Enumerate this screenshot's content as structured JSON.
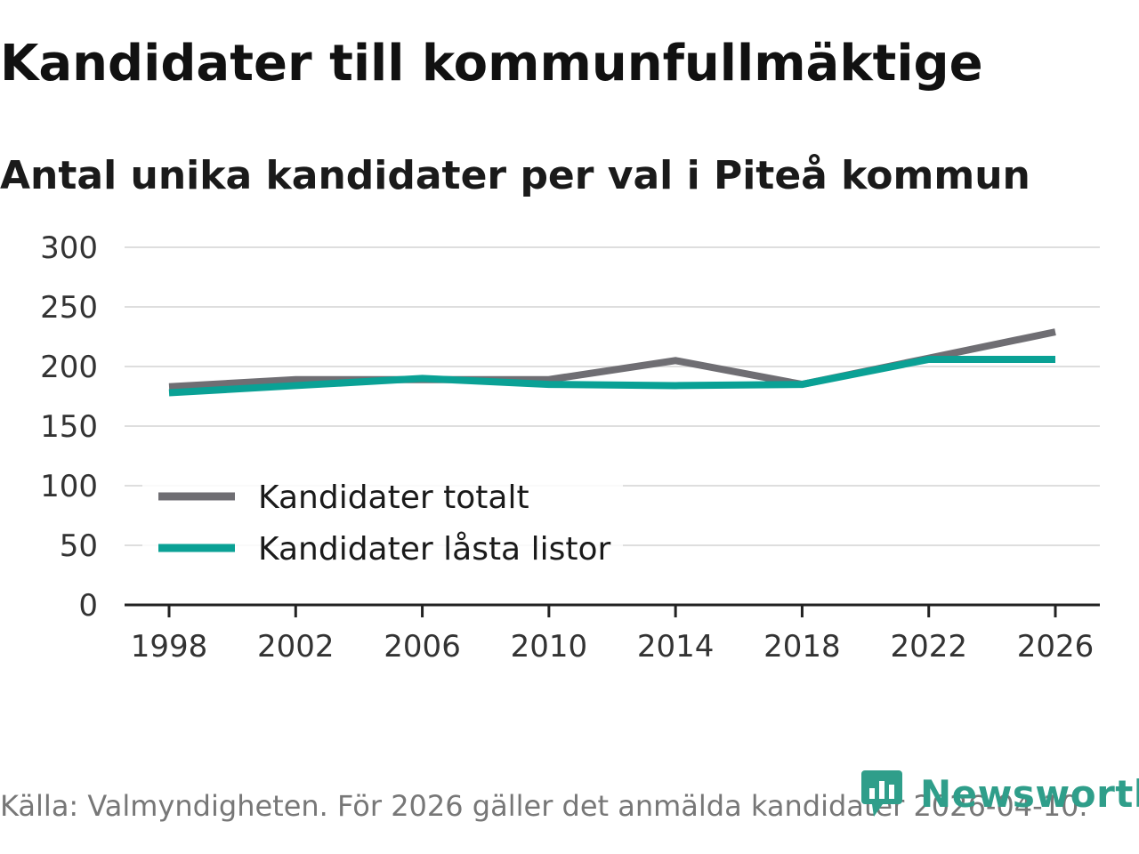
{
  "chart_data": {
    "type": "line",
    "title": "Kandidater till kommunfullmäktige",
    "subtitle": "Antal unika kandidater per val i Piteå kommun",
    "x": [
      1998,
      2002,
      2006,
      2010,
      2014,
      2018,
      2022,
      2026
    ],
    "xticks": [
      "1998",
      "2002",
      "2006",
      "2010",
      "2014",
      "2018",
      "2022",
      "2026"
    ],
    "yticks": [
      0,
      50,
      100,
      150,
      200,
      250,
      300
    ],
    "ylim": [
      0,
      300
    ],
    "xlabel": "",
    "ylabel": "",
    "grid": true,
    "legend_position": "bottom-left",
    "series": [
      {
        "name": "Kandidater totalt",
        "color": "#6f6e73",
        "values": [
          183,
          189,
          189,
          189,
          205,
          185,
          207,
          229
        ]
      },
      {
        "name": "Kandidater låsta listor",
        "color": "#0aa195",
        "values": [
          178,
          184,
          190,
          185,
          184,
          185,
          206,
          206
        ]
      }
    ],
    "source": "Källa: Valmyndigheten. För 2026 gäller det anmälda kandidater 2026-04-10."
  },
  "branding": {
    "logo_text": "Newsworthy",
    "logo_icon": "bar-chart-icon",
    "color": "#2f9e8a"
  }
}
